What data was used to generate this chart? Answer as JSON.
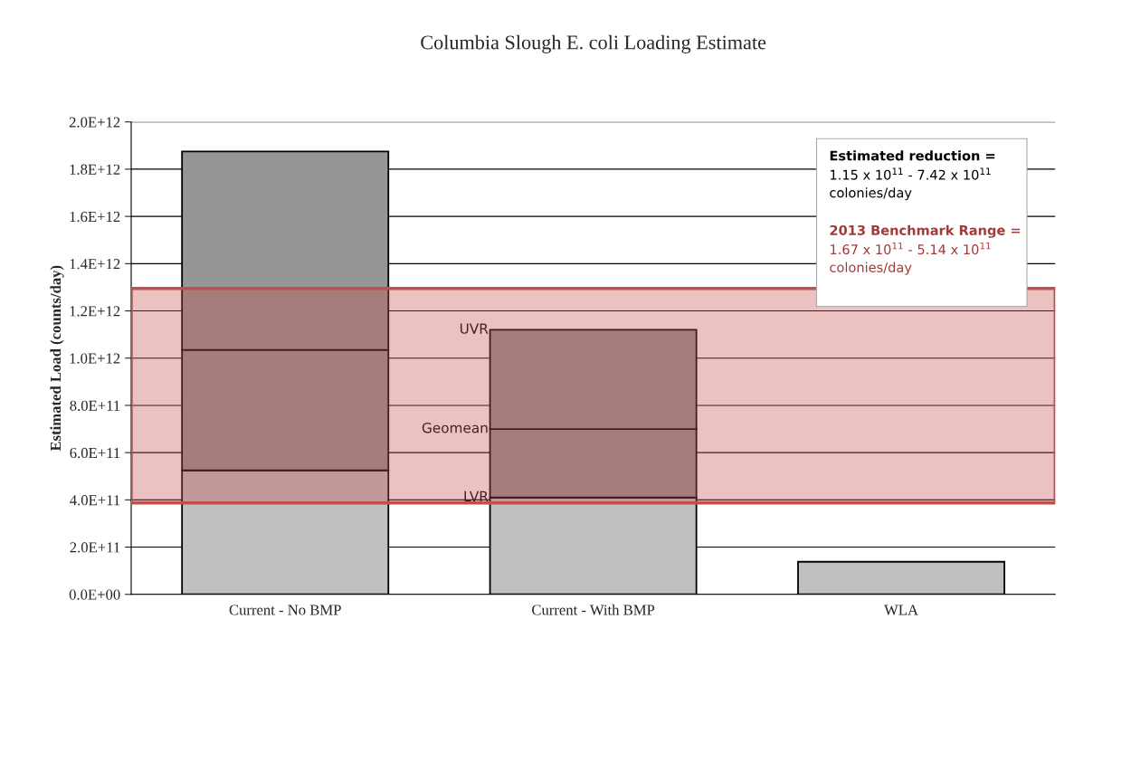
{
  "chart_data": {
    "type": "bar",
    "stacked": true,
    "title": "Columbia Slough E. coli Loading Estimate",
    "ylabel": "Estimated Load (counts/day)",
    "categories": [
      "Current - No BMP",
      "Current - With BMP",
      "WLA"
    ],
    "series": [
      {
        "name": "LVR",
        "color": "#c0c0c0",
        "values": [
          525000000000.0,
          410000000000.0,
          138000000000.0
        ]
      },
      {
        "name": "Geomean",
        "color": "#969696",
        "values": [
          510000000000.0,
          290000000000.0,
          null
        ]
      },
      {
        "name": "UVR",
        "color": "#969696",
        "values": [
          840000000000.0,
          420000000000.0,
          null
        ]
      }
    ],
    "ylim": [
      0,
      2000000000000.0
    ],
    "yticks": [
      {
        "value": 0,
        "label": "0.0E+00"
      },
      {
        "value": 200000000000.0,
        "label": "2.0E+11"
      },
      {
        "value": 400000000000.0,
        "label": "4.0E+11"
      },
      {
        "value": 600000000000.0,
        "label": "6.0E+11"
      },
      {
        "value": 800000000000.0,
        "label": "8.0E+11"
      },
      {
        "value": 1000000000000.0,
        "label": "1.0E+12"
      },
      {
        "value": 1200000000000.0,
        "label": "1.2E+12"
      },
      {
        "value": 1400000000000.0,
        "label": "1.4E+12"
      },
      {
        "value": 1600000000000.0,
        "label": "1.6E+12"
      },
      {
        "value": 1800000000000.0,
        "label": "1.8E+12"
      },
      {
        "value": 2000000000000.0,
        "label": "2.0E+12"
      }
    ],
    "grid": "y",
    "bands": [
      {
        "axis": "y",
        "from": 387000000000.0,
        "to": 1295000000000.0,
        "color": "#c0504d"
      }
    ],
    "annotations": [
      "Estimated reduction =",
      "1.15 x 10$^{11}$ - 7.42 x 10$^{11}$\ncolonies/day",
      "2013 Benchmark Range =",
      "1.67 x 10$^{11}$ - 5.14 x 10$^{11}$\ncolonies/day"
    ]
  }
}
